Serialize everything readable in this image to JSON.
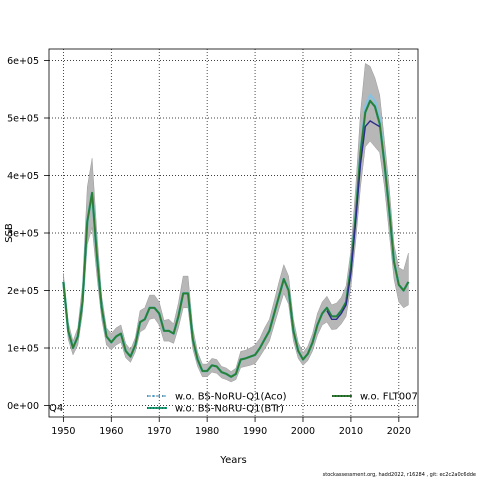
{
  "chart_data": {
    "type": "line",
    "xlabel": "Years",
    "ylabel": "SSB",
    "xlim": [
      1947,
      2024
    ],
    "ylim": [
      -20000,
      620000
    ],
    "x_ticks": [
      1950,
      1960,
      1970,
      1980,
      1990,
      2000,
      2010,
      2020
    ],
    "y_ticks": [
      0,
      100000,
      200000,
      300000,
      400000,
      500000,
      600000
    ],
    "y_tick_labels": [
      "0e+00",
      "1e+05",
      "2e+05",
      "3e+05",
      "4e+05",
      "5e+05",
      "6e+05"
    ],
    "grid": true,
    "grid_style": "dotted",
    "legend_placement": "bottom",
    "corner_label": "Q4",
    "footer_text": "stockassessment.org, hadd2022, r16284 , git: ec2c2a0c6dde",
    "band_color": "#b3b3b3",
    "series": [
      {
        "name": "w.o. BS-NoRU-Q1(Aco)",
        "color": "#87c3e0",
        "x": [
          1950,
          1951,
          1952,
          1953,
          1954,
          1955,
          1956,
          1957,
          1958,
          1959,
          1960,
          1961,
          1962,
          1963,
          1964,
          1965,
          1966,
          1967,
          1968,
          1969,
          1970,
          1971,
          1972,
          1973,
          1974,
          1975,
          1976,
          1977,
          1978,
          1979,
          1980,
          1981,
          1982,
          1983,
          1984,
          1985,
          1986,
          1987,
          1988,
          1989,
          1990,
          1991,
          1992,
          1993,
          1994,
          1995,
          1996,
          1997,
          1998,
          1999,
          2000,
          2001,
          2002,
          2003,
          2004,
          2005,
          2006,
          2007,
          2008,
          2009,
          2010,
          2011,
          2012,
          2013,
          2014,
          2015,
          2016,
          2017,
          2018,
          2019,
          2020,
          2021,
          2022
        ],
        "values": [
          215000,
          130000,
          100000,
          120000,
          180000,
          320000,
          370000,
          260000,
          170000,
          120000,
          110000,
          120000,
          125000,
          95000,
          85000,
          105000,
          145000,
          150000,
          170000,
          170000,
          160000,
          130000,
          130000,
          125000,
          155000,
          195000,
          195000,
          115000,
          80000,
          60000,
          60000,
          70000,
          68000,
          58000,
          55000,
          50000,
          55000,
          80000,
          82000,
          85000,
          88000,
          100000,
          115000,
          130000,
          160000,
          190000,
          220000,
          200000,
          130000,
          95000,
          80000,
          90000,
          110000,
          140000,
          160000,
          170000,
          155000,
          155000,
          165000,
          180000,
          240000,
          330000,
          440000,
          520000,
          540000,
          530000,
          500000,
          420000,
          340000,
          250000,
          210000,
          200000,
          215000
        ]
      },
      {
        "name": "w.o. BS-NoRU-Q1(BTr)",
        "color": "#1b9e77",
        "x": [
          1950,
          1951,
          1952,
          1953,
          1954,
          1955,
          1956,
          1957,
          1958,
          1959,
          1960,
          1961,
          1962,
          1963,
          1964,
          1965,
          1966,
          1967,
          1968,
          1969,
          1970,
          1971,
          1972,
          1973,
          1974,
          1975,
          1976,
          1977,
          1978,
          1979,
          1980,
          1981,
          1982,
          1983,
          1984,
          1985,
          1986,
          1987,
          1988,
          1989,
          1990,
          1991,
          1992,
          1993,
          1994,
          1995,
          1996,
          1997,
          1998,
          1999,
          2000,
          2001,
          2002,
          2003,
          2004,
          2005,
          2006,
          2007,
          2008,
          2009,
          2010,
          2011,
          2012,
          2013,
          2014,
          2015,
          2016,
          2017,
          2018,
          2019,
          2020,
          2021,
          2022
        ],
        "values": [
          215000,
          130000,
          100000,
          120000,
          180000,
          320000,
          370000,
          260000,
          170000,
          120000,
          110000,
          120000,
          125000,
          95000,
          85000,
          105000,
          145000,
          150000,
          170000,
          170000,
          160000,
          130000,
          130000,
          125000,
          155000,
          195000,
          195000,
          115000,
          80000,
          60000,
          60000,
          70000,
          68000,
          58000,
          55000,
          50000,
          55000,
          80000,
          82000,
          85000,
          88000,
          100000,
          115000,
          130000,
          160000,
          190000,
          220000,
          200000,
          130000,
          95000,
          80000,
          90000,
          110000,
          140000,
          160000,
          170000,
          155000,
          155000,
          165000,
          180000,
          240000,
          330000,
          440000,
          510000,
          530000,
          520000,
          490000,
          420000,
          340000,
          250000,
          210000,
          200000,
          215000
        ]
      },
      {
        "name": "w.o. FLT007",
        "color": "#2e7d32",
        "x": [
          1950,
          1951,
          1952,
          1953,
          1954,
          1955,
          1956,
          1957,
          1958,
          1959,
          1960,
          1961,
          1962,
          1963,
          1964,
          1965,
          1966,
          1967,
          1968,
          1969,
          1970,
          1971,
          1972,
          1973,
          1974,
          1975,
          1976,
          1977,
          1978,
          1979,
          1980,
          1981,
          1982,
          1983,
          1984,
          1985,
          1986,
          1987,
          1988,
          1989,
          1990,
          1991,
          1992,
          1993,
          1994,
          1995,
          1996,
          1997,
          1998,
          1999,
          2000,
          2001,
          2002,
          2003,
          2004,
          2005,
          2006,
          2007,
          2008,
          2009,
          2010,
          2011,
          2012,
          2013,
          2014,
          2015,
          2016,
          2017,
          2018,
          2019,
          2020,
          2021,
          2022
        ],
        "values": [
          215000,
          130000,
          100000,
          120000,
          180000,
          320000,
          370000,
          260000,
          170000,
          120000,
          110000,
          120000,
          125000,
          95000,
          85000,
          105000,
          145000,
          150000,
          170000,
          170000,
          160000,
          130000,
          130000,
          125000,
          155000,
          195000,
          195000,
          115000,
          80000,
          60000,
          60000,
          70000,
          68000,
          58000,
          55000,
          50000,
          55000,
          80000,
          82000,
          85000,
          88000,
          100000,
          115000,
          130000,
          160000,
          190000,
          220000,
          200000,
          130000,
          95000,
          80000,
          90000,
          110000,
          140000,
          160000,
          170000,
          155000,
          155000,
          165000,
          180000,
          240000,
          330000,
          440000,
          510000,
          530000,
          520000,
          490000,
          420000,
          340000,
          250000,
          210000,
          200000,
          215000
        ]
      },
      {
        "name": "",
        "color": "#2c2c8c",
        "x": [
          2005,
          2006,
          2007,
          2008,
          2009,
          2010,
          2011,
          2012,
          2013,
          2014,
          2015,
          2016
        ],
        "values": [
          165000,
          150000,
          150000,
          160000,
          175000,
          230000,
          320000,
          420000,
          485000,
          495000,
          490000,
          485000
        ]
      }
    ],
    "band": {
      "x": [
        1950,
        1951,
        1952,
        1953,
        1954,
        1955,
        1956,
        1957,
        1958,
        1959,
        1960,
        1961,
        1962,
        1963,
        1964,
        1965,
        1966,
        1967,
        1968,
        1969,
        1970,
        1971,
        1972,
        1973,
        1974,
        1975,
        1976,
        1977,
        1978,
        1979,
        1980,
        1981,
        1982,
        1983,
        1984,
        1985,
        1986,
        1987,
        1988,
        1989,
        1990,
        1991,
        1992,
        1993,
        1994,
        1995,
        1996,
        1997,
        1998,
        1999,
        2000,
        2001,
        2002,
        2003,
        2004,
        2005,
        2006,
        2007,
        2008,
        2009,
        2010,
        2011,
        2012,
        2013,
        2014,
        2015,
        2016,
        2017,
        2018,
        2019,
        2020,
        2021,
        2022
      ],
      "lower": [
        200000,
        115000,
        88000,
        105000,
        160000,
        280000,
        310000,
        225000,
        150000,
        105000,
        97000,
        105000,
        110000,
        83000,
        75000,
        93000,
        128000,
        133000,
        150000,
        152000,
        140000,
        112000,
        112000,
        108000,
        135000,
        170000,
        170000,
        98000,
        68000,
        50000,
        50000,
        58000,
        56000,
        48000,
        45000,
        41000,
        45000,
        66000,
        68000,
        70000,
        73000,
        85000,
        98000,
        112000,
        140000,
        168000,
        195000,
        176000,
        112000,
        82000,
        70000,
        78000,
        95000,
        122000,
        140000,
        145000,
        132000,
        133000,
        142000,
        155000,
        205000,
        285000,
        380000,
        450000,
        460000,
        450000,
        440000,
        380000,
        300000,
        220000,
        180000,
        170000,
        175000
      ],
      "upper": [
        230000,
        145000,
        112000,
        135000,
        210000,
        380000,
        430000,
        300000,
        190000,
        135000,
        125000,
        135000,
        140000,
        108000,
        97000,
        118000,
        165000,
        170000,
        192000,
        192000,
        180000,
        148000,
        150000,
        142000,
        178000,
        225000,
        225000,
        135000,
        93000,
        72000,
        72000,
        82000,
        80000,
        68000,
        65000,
        59000,
        65000,
        94000,
        96000,
        100000,
        105000,
        117000,
        135000,
        150000,
        182000,
        215000,
        245000,
        225000,
        150000,
        110000,
        92000,
        103000,
        125000,
        160000,
        180000,
        190000,
        175000,
        178000,
        188000,
        208000,
        270000,
        380000,
        510000,
        595000,
        590000,
        570000,
        540000,
        460000,
        380000,
        280000,
        240000,
        235000,
        265000
      ]
    }
  }
}
